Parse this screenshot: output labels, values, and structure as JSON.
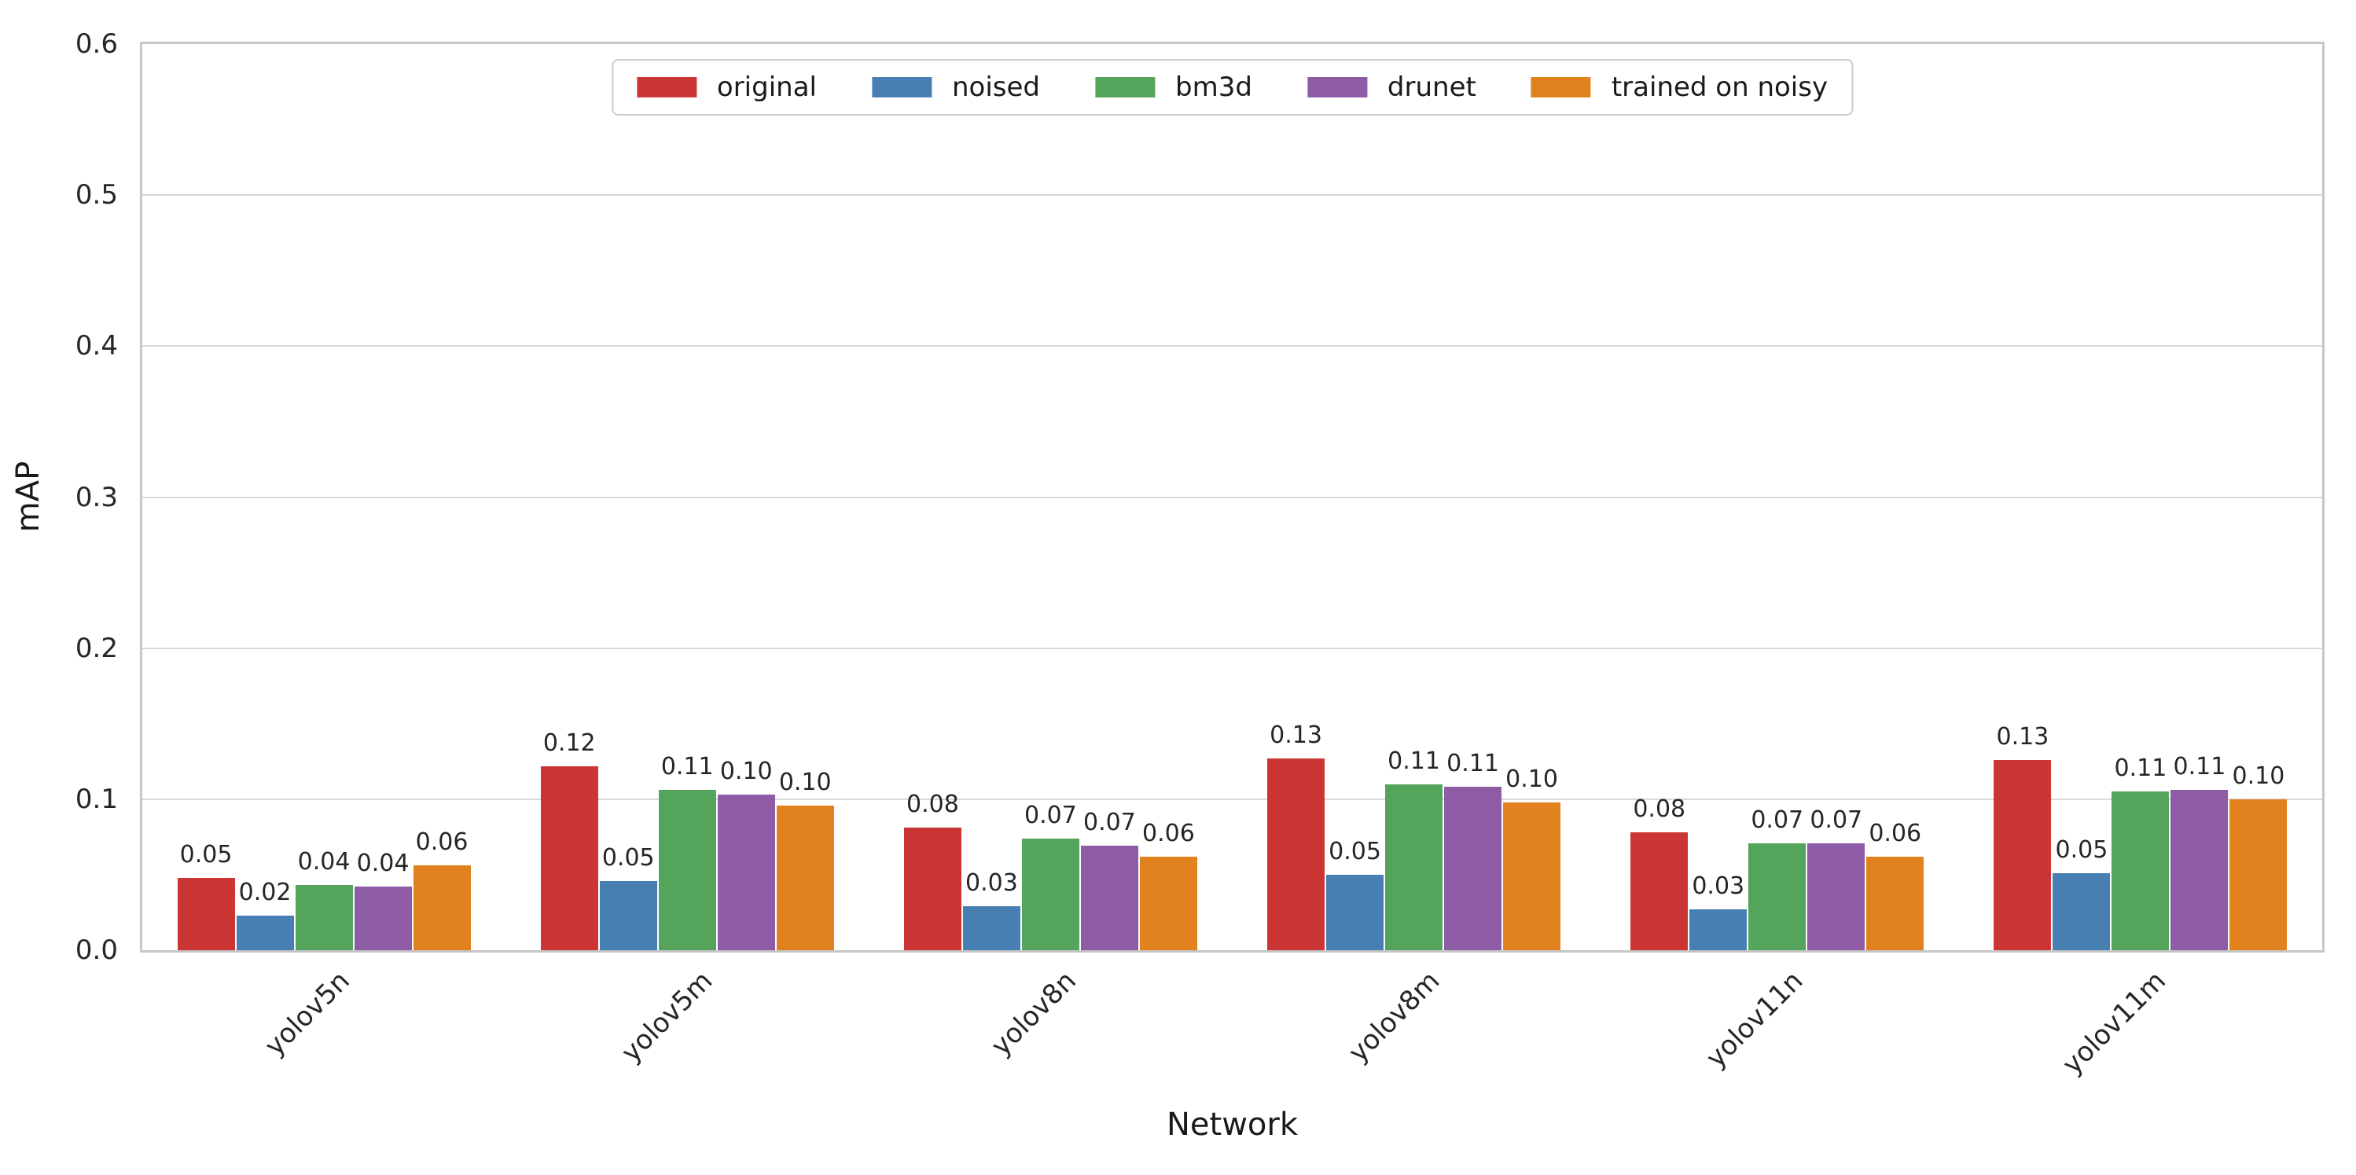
{
  "chart_data": {
    "type": "bar",
    "title": "",
    "xlabel": "Network",
    "ylabel": "mAP",
    "ylim": [
      0.0,
      0.6
    ],
    "ytick_labels": [
      "0.0",
      "0.1",
      "0.2",
      "0.3",
      "0.4",
      "0.5",
      "0.6"
    ],
    "grid": true,
    "legend_position": "upper center",
    "categories": [
      "yolov5n",
      "yolov5m",
      "yolov8n",
      "yolov8m",
      "yolov11n",
      "yolov11m"
    ],
    "series": [
      {
        "name": "original",
        "color": "#cb3634",
        "labels": [
          "0.05",
          "0.12",
          "0.08",
          "0.13",
          "0.08",
          "0.13"
        ],
        "values": [
          0.048,
          0.122,
          0.081,
          0.127,
          0.078,
          0.126
        ]
      },
      {
        "name": "noised",
        "color": "#477fb2",
        "labels": [
          "0.02",
          "0.05",
          "0.03",
          "0.05",
          "0.03",
          "0.05"
        ],
        "values": [
          0.023,
          0.046,
          0.029,
          0.05,
          0.027,
          0.051
        ]
      },
      {
        "name": "bm3d",
        "color": "#55a45b",
        "labels": [
          "0.04",
          "0.11",
          "0.07",
          "0.11",
          "0.07",
          "0.11"
        ],
        "values": [
          0.043,
          0.106,
          0.074,
          0.11,
          0.071,
          0.105
        ]
      },
      {
        "name": "drunet",
        "color": "#8d5ca5",
        "labels": [
          "0.04",
          "0.10",
          "0.07",
          "0.11",
          "0.07",
          "0.11"
        ],
        "values": [
          0.042,
          0.103,
          0.069,
          0.108,
          0.071,
          0.106
        ]
      },
      {
        "name": "trained on noisy",
        "color": "#e1821e",
        "labels": [
          "0.06",
          "0.10",
          "0.06",
          "0.10",
          "0.06",
          "0.10"
        ],
        "values": [
          0.056,
          0.096,
          0.062,
          0.098,
          0.062,
          0.1
        ]
      }
    ]
  }
}
